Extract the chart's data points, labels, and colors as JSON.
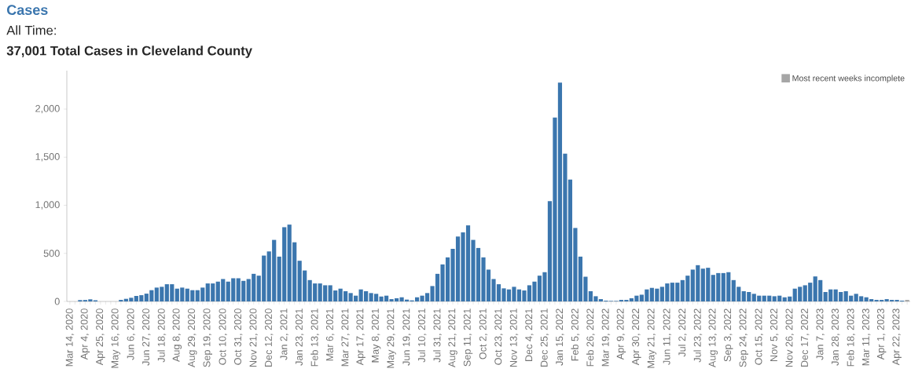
{
  "chart_data": {
    "type": "bar",
    "title": "Cases",
    "subtitle": "All Time:",
    "annotations": [
      "37,001 Total Cases in Cleveland County"
    ],
    "categories": [
      "Mar 14, 2020",
      null,
      null,
      "Apr 4, 2020",
      null,
      null,
      "Apr 25, 2020",
      null,
      null,
      "May 16, 2020",
      null,
      null,
      "Jun 6, 2020",
      null,
      null,
      "Jun 27, 2020",
      null,
      null,
      "Jul 18, 2020",
      null,
      null,
      "Aug 8, 2020",
      null,
      null,
      "Aug 29, 2020",
      null,
      null,
      "Sep 19, 2020",
      null,
      null,
      "Oct 10, 2020",
      null,
      null,
      "Oct 31, 2020",
      null,
      null,
      "Nov 21, 2020",
      null,
      null,
      "Dec 12, 2020",
      null,
      null,
      "Jan 2, 2021",
      null,
      null,
      "Jan 23, 2021",
      null,
      null,
      "Feb 13, 2021",
      null,
      null,
      "Mar 6, 2021",
      null,
      null,
      "Mar 27, 2021",
      null,
      null,
      "Apr 17, 2021",
      null,
      null,
      "May 8, 2021",
      null,
      null,
      "May 29, 2021",
      null,
      null,
      "Jun 19, 2021",
      null,
      null,
      "Jul 10, 2021",
      null,
      null,
      "Jul 31, 2021",
      null,
      null,
      "Aug 21, 2021",
      null,
      null,
      "Sep 11, 2021",
      null,
      null,
      "Oct 2, 2021",
      null,
      null,
      "Oct 23, 2021",
      null,
      null,
      "Nov 13, 2021",
      null,
      null,
      "Dec 4, 2021",
      null,
      null,
      "Dec 25, 2021",
      null,
      null,
      "Jan 15, 2022",
      null,
      null,
      "Feb 5, 2022",
      null,
      null,
      "Feb 26, 2022",
      null,
      null,
      "Mar 19, 2022",
      null,
      null,
      "Apr 9, 2022",
      null,
      null,
      "Apr 30, 2022",
      null,
      null,
      "May 21, 2022",
      null,
      null,
      "Jun 11, 2022",
      null,
      null,
      "Jul 2, 2022",
      null,
      null,
      "Jul 23, 2022",
      null,
      null,
      "Aug 13, 2022",
      null,
      null,
      "Sep 3, 2022",
      null,
      null,
      "Sep 24, 2022",
      null,
      null,
      "Oct 15, 2022",
      null,
      null,
      "Nov 5, 2022",
      null,
      null,
      "Nov 26, 2022",
      null,
      null,
      "Dec 17, 2022",
      null,
      null,
      "Jan 7, 2023",
      null,
      null,
      "Jan 28, 2023",
      null,
      null,
      "Feb 18, 2023",
      null,
      null,
      "Mar 11, 2023",
      null,
      null,
      "Apr 1, 2023",
      null,
      null,
      "Apr 22, 2023",
      null,
      null
    ],
    "series": [
      {
        "color": "#3b76ae",
        "values": [
          null,
          null,
          14,
          15,
          22,
          12,
          null,
          null,
          null,
          null,
          16,
          27,
          38,
          57,
          65,
          81,
          117,
          144,
          152,
          179,
          179,
          133,
          144,
          133,
          117,
          117,
          144,
          187,
          187,
          206,
          233,
          206,
          241,
          241,
          214,
          233,
          287,
          268,
          477,
          520,
          640,
          466,
          772,
          799,
          615,
          423,
          322,
          222,
          187,
          187,
          168,
          168,
          114,
          133,
          106,
          87,
          60,
          125,
          106,
          87,
          79,
          51,
          60,
          24,
          33,
          43,
          19,
          11,
          43,
          60,
          87,
          160,
          287,
          385,
          458,
          547,
          675,
          718,
          791,
          640,
          556,
          458,
          331,
          233,
          179,
          136,
          125,
          152,
          125,
          114,
          168,
          206,
          268,
          304,
          1043,
          1913,
          2276,
          1537,
          1268,
          764,
          466,
          257,
          106,
          54,
          24,
          8,
          5,
          5,
          16,
          16,
          33,
          60,
          70,
          125,
          141,
          133,
          152,
          187,
          195,
          195,
          222,
          268,
          331,
          377,
          341,
          350,
          276,
          295,
          295,
          304,
          222,
          152,
          106,
          98,
          79,
          60,
          60,
          60,
          54,
          60,
          43,
          51,
          133,
          152,
          168,
          195,
          260,
          222,
          98,
          125,
          125,
          98,
          106,
          60,
          79,
          54,
          43,
          24,
          16,
          16,
          24,
          16,
          16,
          8,
          null
        ]
      },
      {
        "name": "Most recent weeks incomplete",
        "color": "#a6a6a6",
        "values": [
          null,
          null,
          null,
          null,
          null,
          null,
          null,
          null,
          null,
          null,
          null,
          null,
          null,
          null,
          null,
          null,
          null,
          null,
          null,
          null,
          null,
          null,
          null,
          null,
          null,
          null,
          null,
          null,
          null,
          null,
          null,
          null,
          null,
          null,
          null,
          null,
          null,
          null,
          null,
          null,
          null,
          null,
          null,
          null,
          null,
          null,
          null,
          null,
          null,
          null,
          null,
          null,
          null,
          null,
          null,
          null,
          null,
          null,
          null,
          null,
          null,
          null,
          null,
          null,
          null,
          null,
          null,
          null,
          null,
          null,
          null,
          null,
          null,
          null,
          null,
          null,
          null,
          null,
          null,
          null,
          null,
          null,
          null,
          null,
          null,
          null,
          null,
          null,
          null,
          null,
          null,
          null,
          null,
          null,
          null,
          null,
          null,
          null,
          null,
          null,
          null,
          null,
          null,
          null,
          null,
          null,
          null,
          null,
          null,
          null,
          null,
          null,
          null,
          null,
          null,
          null,
          null,
          null,
          null,
          null,
          null,
          null,
          null,
          null,
          null,
          null,
          null,
          null,
          null,
          null,
          null,
          null,
          null,
          null,
          null,
          null,
          null,
          null,
          null,
          null,
          null,
          null,
          null,
          null,
          null,
          null,
          null,
          null,
          null,
          null,
          null,
          null,
          null,
          null,
          null,
          null,
          null,
          null,
          null,
          null,
          null,
          null,
          null,
          null,
          16
        ]
      }
    ],
    "ylim": [
      0,
      2400
    ],
    "yticks": [
      0,
      500,
      {
        "value": 1000,
        "label": "1,000"
      },
      {
        "value": 1500,
        "label": "1,500"
      },
      {
        "value": 2000,
        "label": "2,000"
      }
    ],
    "legend": "top right"
  }
}
